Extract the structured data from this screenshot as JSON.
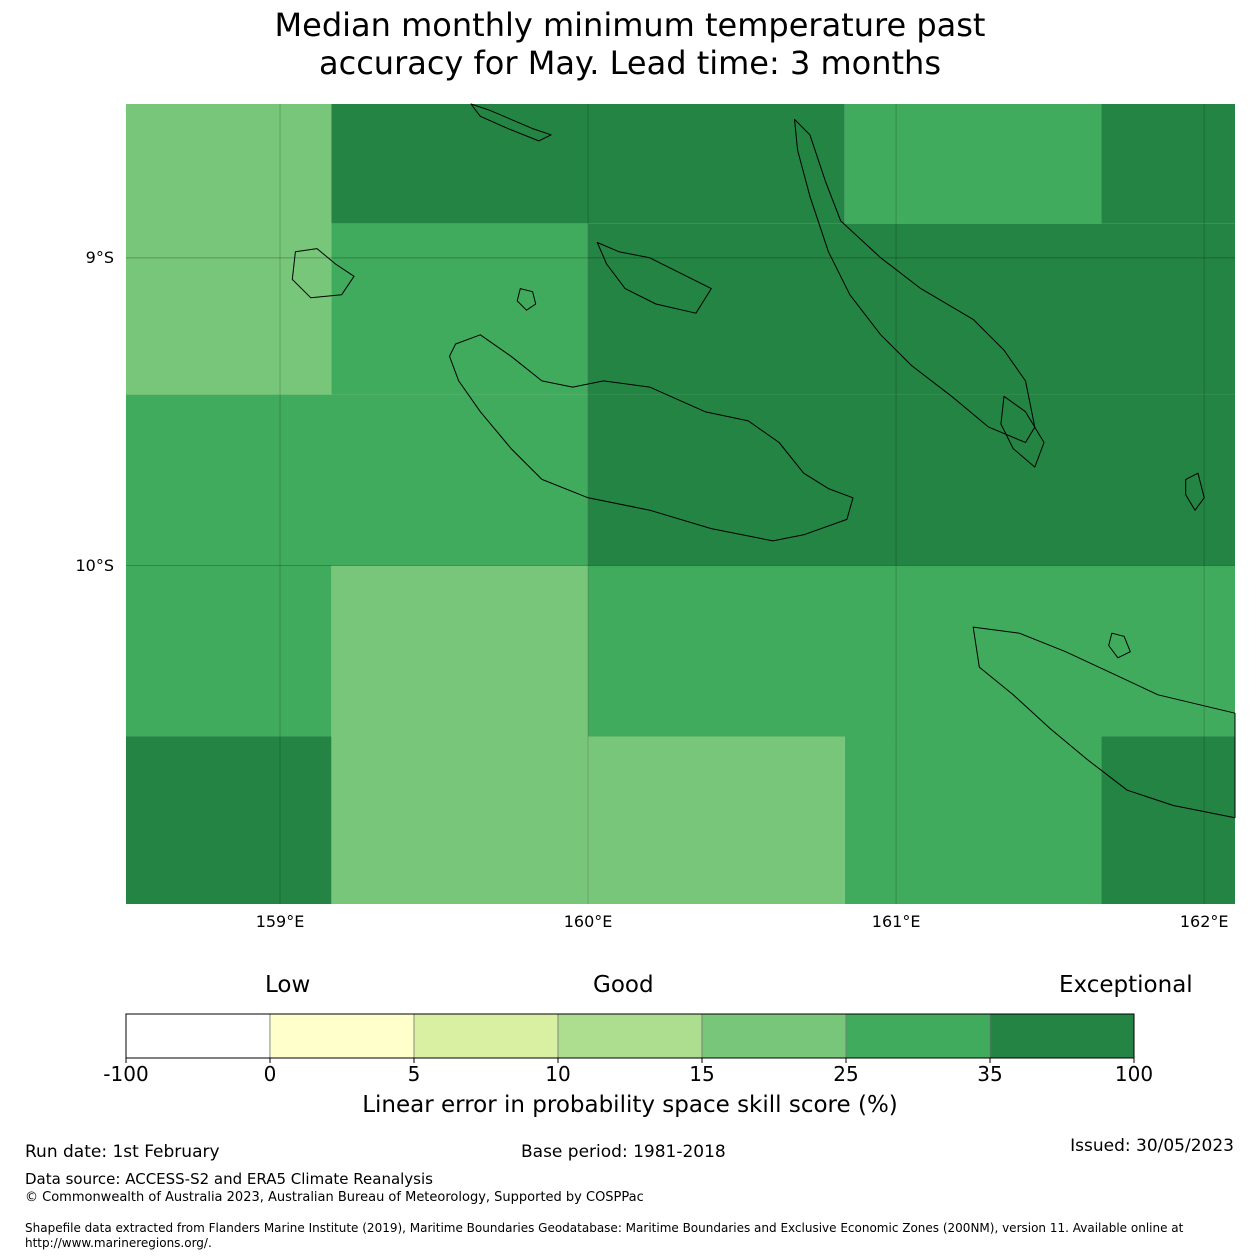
{
  "title_line1": "Median monthly minimum temperature past",
  "title_line2": "accuracy for May. Lead time: 3 months",
  "map": {
    "extent": {
      "lon_min": 158.5,
      "lon_max": 162.1,
      "lat_top": -8.5,
      "lat_bottom": -11.1
    },
    "lon_ticks": [
      {
        "lon": 159,
        "label": "159°E"
      },
      {
        "lon": 160,
        "label": "160°E"
      },
      {
        "lon": 161,
        "label": "161°E"
      },
      {
        "lon": 162,
        "label": "162°E"
      }
    ],
    "lat_ticks": [
      {
        "lat": -9,
        "label": "9°S"
      },
      {
        "lat": -10,
        "label": "10°S"
      }
    ],
    "grid_cells": [
      {
        "lon0": 158.5,
        "lon1": 159.1667,
        "lat0": -8.5,
        "lat1": -9.4444,
        "category": "15-25"
      },
      {
        "lon0": 159.1667,
        "lon1": 160.8333,
        "lat0": -8.5,
        "lat1": -8.8889,
        "category": "35-100"
      },
      {
        "lon0": 160.8333,
        "lon1": 161.6667,
        "lat0": -8.5,
        "lat1": -8.8889,
        "category": "25-35"
      },
      {
        "lon0": 161.6667,
        "lon1": 162.1,
        "lat0": -8.5,
        "lat1": -8.8889,
        "category": "35-100"
      },
      {
        "lon0": 159.1667,
        "lon1": 160.0,
        "lat0": -8.8889,
        "lat1": -9.4444,
        "category": "25-35"
      },
      {
        "lon0": 160.0,
        "lon1": 162.1,
        "lat0": -8.8889,
        "lat1": -9.4444,
        "category": "35-100"
      },
      {
        "lon0": 158.5,
        "lon1": 160.0,
        "lat0": -9.4444,
        "lat1": -10.0,
        "category": "25-35"
      },
      {
        "lon0": 160.0,
        "lon1": 162.1,
        "lat0": -9.4444,
        "lat1": -10.0,
        "category": "35-100"
      },
      {
        "lon0": 158.5,
        "lon1": 159.1667,
        "lat0": -10.0,
        "lat1": -10.5556,
        "category": "25-35"
      },
      {
        "lon0": 159.1667,
        "lon1": 160.0,
        "lat0": -10.0,
        "lat1": -11.1,
        "category": "15-25"
      },
      {
        "lon0": 160.0,
        "lon1": 162.1,
        "lat0": -10.0,
        "lat1": -10.5556,
        "category": "25-35"
      },
      {
        "lon0": 158.5,
        "lon1": 159.1667,
        "lat0": -10.5556,
        "lat1": -11.1,
        "category": "35-100"
      },
      {
        "lon0": 160.0,
        "lon1": 160.8333,
        "lat0": -10.5556,
        "lat1": -11.1,
        "category": "15-25"
      },
      {
        "lon0": 160.8333,
        "lon1": 161.6667,
        "lat0": -10.5556,
        "lat1": -11.1,
        "category": "25-35"
      },
      {
        "lon0": 161.6667,
        "lon1": 162.1,
        "lat0": -10.5556,
        "lat1": -11.1,
        "category": "35-100"
      }
    ],
    "islands": [
      {
        "name": "Guadalcanal",
        "points": [
          [
            159.57,
            -9.28
          ],
          [
            159.65,
            -9.25
          ],
          [
            159.75,
            -9.32
          ],
          [
            159.85,
            -9.4
          ],
          [
            159.95,
            -9.42
          ],
          [
            160.05,
            -9.4
          ],
          [
            160.2,
            -9.42
          ],
          [
            160.38,
            -9.5
          ],
          [
            160.52,
            -9.53
          ],
          [
            160.62,
            -9.6
          ],
          [
            160.7,
            -9.7
          ],
          [
            160.78,
            -9.75
          ],
          [
            160.86,
            -9.78
          ],
          [
            160.84,
            -9.85
          ],
          [
            160.7,
            -9.9
          ],
          [
            160.6,
            -9.92
          ],
          [
            160.4,
            -9.88
          ],
          [
            160.2,
            -9.82
          ],
          [
            160.0,
            -9.78
          ],
          [
            159.85,
            -9.72
          ],
          [
            159.75,
            -9.62
          ],
          [
            159.65,
            -9.5
          ],
          [
            159.58,
            -9.4
          ],
          [
            159.55,
            -9.32
          ]
        ]
      },
      {
        "name": "Malaita",
        "points": [
          [
            160.67,
            -8.55
          ],
          [
            160.72,
            -8.6
          ],
          [
            160.77,
            -8.75
          ],
          [
            160.82,
            -8.88
          ],
          [
            160.95,
            -9.0
          ],
          [
            161.08,
            -9.1
          ],
          [
            161.25,
            -9.2
          ],
          [
            161.35,
            -9.3
          ],
          [
            161.42,
            -9.4
          ],
          [
            161.45,
            -9.55
          ],
          [
            161.42,
            -9.6
          ],
          [
            161.3,
            -9.55
          ],
          [
            161.18,
            -9.45
          ],
          [
            161.05,
            -9.35
          ],
          [
            160.95,
            -9.25
          ],
          [
            160.85,
            -9.12
          ],
          [
            160.78,
            -8.98
          ],
          [
            160.72,
            -8.8
          ],
          [
            160.68,
            -8.65
          ]
        ]
      },
      {
        "name": "Nggela",
        "points": [
          [
            160.03,
            -8.95
          ],
          [
            160.1,
            -8.98
          ],
          [
            160.2,
            -9.0
          ],
          [
            160.3,
            -9.05
          ],
          [
            160.4,
            -9.1
          ],
          [
            160.35,
            -9.18
          ],
          [
            160.22,
            -9.15
          ],
          [
            160.12,
            -9.1
          ],
          [
            160.06,
            -9.02
          ]
        ]
      },
      {
        "name": "Makira",
        "points": [
          [
            161.25,
            -10.2
          ],
          [
            161.4,
            -10.22
          ],
          [
            161.55,
            -10.28
          ],
          [
            161.7,
            -10.35
          ],
          [
            161.85,
            -10.42
          ],
          [
            162.1,
            -10.48
          ],
          [
            162.1,
            -10.82
          ],
          [
            161.9,
            -10.78
          ],
          [
            161.75,
            -10.73
          ],
          [
            161.62,
            -10.63
          ],
          [
            161.5,
            -10.53
          ],
          [
            161.38,
            -10.42
          ],
          [
            161.27,
            -10.33
          ]
        ]
      },
      {
        "name": "Savo",
        "points": [
          [
            159.78,
            -9.1
          ],
          [
            159.82,
            -9.11
          ],
          [
            159.83,
            -9.15
          ],
          [
            159.8,
            -9.17
          ],
          [
            159.77,
            -9.14
          ]
        ]
      },
      {
        "name": "Russell Islands",
        "points": [
          [
            159.05,
            -8.98
          ],
          [
            159.12,
            -8.97
          ],
          [
            159.18,
            -9.02
          ],
          [
            159.24,
            -9.06
          ],
          [
            159.2,
            -9.12
          ],
          [
            159.1,
            -9.13
          ],
          [
            159.04,
            -9.07
          ]
        ]
      },
      {
        "name": "Santa Isabel tip",
        "points": [
          [
            159.62,
            -8.5
          ],
          [
            159.68,
            -8.52
          ],
          [
            159.75,
            -8.55
          ],
          [
            159.82,
            -8.58
          ],
          [
            159.88,
            -8.6
          ],
          [
            159.84,
            -8.62
          ],
          [
            159.74,
            -8.58
          ],
          [
            159.65,
            -8.54
          ]
        ]
      },
      {
        "name": "Small Malaita",
        "points": [
          [
            161.35,
            -9.45
          ],
          [
            161.42,
            -9.5
          ],
          [
            161.48,
            -9.6
          ],
          [
            161.45,
            -9.68
          ],
          [
            161.38,
            -9.62
          ],
          [
            161.34,
            -9.54
          ]
        ]
      },
      {
        "name": "Ulawa",
        "points": [
          [
            161.94,
            -9.72
          ],
          [
            161.98,
            -9.7
          ],
          [
            162.0,
            -9.78
          ],
          [
            161.97,
            -9.82
          ],
          [
            161.94,
            -9.77
          ]
        ]
      },
      {
        "name": "Uki",
        "points": [
          [
            161.7,
            -10.22
          ],
          [
            161.74,
            -10.23
          ],
          [
            161.76,
            -10.28
          ],
          [
            161.72,
            -10.3
          ],
          [
            161.69,
            -10.26
          ]
        ]
      }
    ]
  },
  "colorbar": {
    "low_label": "Low",
    "good_label": "Good",
    "exceptional_label": "Exceptional",
    "title": "Linear error in probability space skill score (%)",
    "ticks": [
      "-100",
      "0",
      "5",
      "10",
      "15",
      "25",
      "35",
      "100"
    ],
    "segments": [
      {
        "range": "-100-0",
        "color": "#ffffff"
      },
      {
        "range": "0-5",
        "color": "#ffffcc"
      },
      {
        "range": "5-10",
        "color": "#d9f0a3"
      },
      {
        "range": "10-15",
        "color": "#addd8e"
      },
      {
        "range": "15-25",
        "color": "#78c679"
      },
      {
        "range": "25-35",
        "color": "#41ab5d"
      },
      {
        "range": "35-100",
        "color": "#238443"
      }
    ]
  },
  "footer": {
    "run_date": "Run date: 1st February",
    "base_period": "Base period: 1981-2018",
    "issued": "Issued: 30/05/2023",
    "data_source": "Data source: ACCESS-S2 and ERA5 Climate Reanalysis",
    "copyright": "© Commonwealth of Australia 2023, Australian Bureau of Meteorology, Supported by COSPPac",
    "shapefile": "Shapefile data extracted from Flanders Marine Institute (2019), Maritime Boundaries Geodatabase: Maritime Boundaries and Exclusive Economic Zones (200NM), version 11. Available online at http://www.marineregions.org/."
  }
}
